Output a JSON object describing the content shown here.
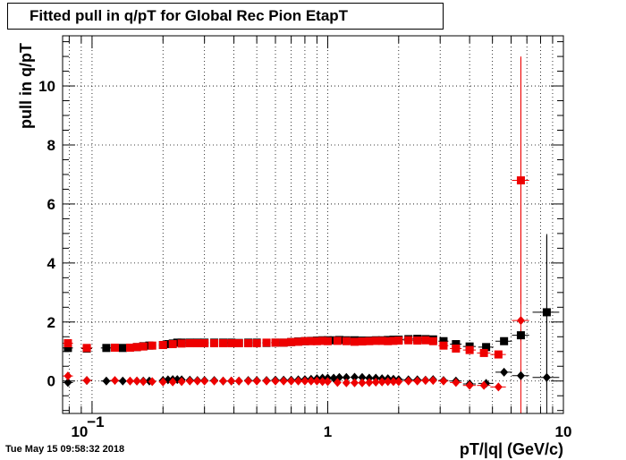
{
  "chart_data": {
    "type": "scatter",
    "title": "Fitted pull in q/pT for Global Rec Pion EtapT",
    "xlabel": "pT/|q| (GeV/c)",
    "ylabel": "pull in q/pT",
    "x_scale": "log",
    "xlim": [
      0.075,
      10
    ],
    "ylim": [
      -1.1,
      11.7
    ],
    "x_tick_labels": [
      "10^-1",
      "1",
      "10"
    ],
    "y_tick_labels": [
      "0",
      "2",
      "4",
      "6",
      "8",
      "10"
    ],
    "grid": true,
    "colors": {
      "series_a": "#000000",
      "series_b": "#ee0000"
    },
    "series": [
      {
        "marker": "square",
        "color": "#000000",
        "x": [
          0.079,
          0.095,
          0.115,
          0.135,
          0.155,
          0.165,
          0.175,
          0.2,
          0.21,
          0.22,
          0.23,
          0.24,
          0.26,
          0.28,
          0.3,
          0.33,
          0.36,
          0.39,
          0.42,
          0.46,
          0.5,
          0.55,
          0.6,
          0.65,
          0.7,
          0.75,
          0.8,
          0.85,
          0.9,
          0.95,
          1.0,
          1.06,
          1.12,
          1.2,
          1.3,
          1.4,
          1.5,
          1.6,
          1.7,
          1.8,
          1.9,
          2.0,
          2.2,
          2.4,
          2.6,
          2.8,
          3.1,
          3.5,
          4.0,
          4.7,
          5.6,
          6.6,
          8.5
        ],
        "y": [
          1.12,
          1.1,
          1.12,
          1.12,
          1.15,
          1.18,
          1.2,
          1.22,
          1.25,
          1.27,
          1.3,
          1.3,
          1.3,
          1.3,
          1.3,
          1.3,
          1.3,
          1.3,
          1.29,
          1.3,
          1.3,
          1.29,
          1.3,
          1.3,
          1.32,
          1.34,
          1.35,
          1.36,
          1.37,
          1.38,
          1.38,
          1.38,
          1.39,
          1.38,
          1.38,
          1.37,
          1.37,
          1.38,
          1.38,
          1.39,
          1.4,
          1.4,
          1.42,
          1.43,
          1.42,
          1.41,
          1.35,
          1.25,
          1.17,
          1.15,
          1.35,
          1.55,
          2.33
        ],
        "yerr": [
          0.01,
          0.01,
          0.01,
          0.01,
          0.01,
          0.01,
          0.01,
          0.01,
          0.01,
          0.01,
          0.01,
          0.01,
          0.01,
          0.01,
          0.01,
          0.01,
          0.01,
          0.01,
          0.01,
          0.01,
          0.01,
          0.01,
          0.01,
          0.01,
          0.01,
          0.01,
          0.01,
          0.01,
          0.01,
          0.01,
          0.01,
          0.01,
          0.01,
          0.01,
          0.01,
          0.01,
          0.01,
          0.01,
          0.01,
          0.01,
          0.01,
          0.01,
          0.01,
          0.01,
          0.01,
          0.01,
          0.02,
          0.02,
          0.04,
          0.05,
          0.1,
          0.2,
          2.65
        ],
        "xerr": [
          0.004,
          0.005,
          0.006,
          0.006,
          0.006,
          0.006,
          0.006,
          0.008,
          0.008,
          0.008,
          0.008,
          0.008,
          0.01,
          0.01,
          0.012,
          0.013,
          0.014,
          0.015,
          0.016,
          0.018,
          0.02,
          0.022,
          0.024,
          0.025,
          0.025,
          0.025,
          0.025,
          0.025,
          0.025,
          0.025,
          0.03,
          0.03,
          0.03,
          0.04,
          0.05,
          0.05,
          0.05,
          0.05,
          0.05,
          0.05,
          0.05,
          0.1,
          0.1,
          0.1,
          0.1,
          0.1,
          0.15,
          0.2,
          0.25,
          0.35,
          0.45,
          0.55,
          1.1
        ]
      },
      {
        "marker": "diamond",
        "color": "#000000",
        "x": [
          0.079,
          0.095,
          0.115,
          0.135,
          0.155,
          0.165,
          0.175,
          0.2,
          0.21,
          0.22,
          0.23,
          0.24,
          0.26,
          0.28,
          0.3,
          0.33,
          0.36,
          0.39,
          0.42,
          0.46,
          0.5,
          0.55,
          0.6,
          0.65,
          0.7,
          0.75,
          0.8,
          0.85,
          0.9,
          0.95,
          1.0,
          1.06,
          1.12,
          1.2,
          1.3,
          1.4,
          1.5,
          1.6,
          1.7,
          1.8,
          1.9,
          2.0,
          2.2,
          2.4,
          2.6,
          2.8,
          3.1,
          3.5,
          4.0,
          4.7,
          5.6,
          6.6,
          8.5
        ],
        "y": [
          -0.05,
          0.02,
          0.0,
          0.0,
          0.0,
          0.0,
          0.0,
          0.02,
          0.04,
          0.05,
          0.05,
          0.04,
          0.03,
          0.02,
          0.02,
          0.02,
          0.0,
          0.0,
          0.0,
          0.02,
          0.02,
          0.02,
          0.03,
          0.03,
          0.03,
          0.04,
          0.05,
          0.06,
          0.08,
          0.1,
          0.1,
          0.1,
          0.12,
          0.12,
          0.13,
          0.12,
          0.1,
          0.1,
          0.08,
          0.08,
          0.06,
          0.05,
          0.04,
          0.04,
          0.03,
          0.05,
          0.02,
          0.0,
          -0.1,
          -0.08,
          0.3,
          0.18,
          0.12
        ],
        "yerr": [
          0.01,
          0.01,
          0.01,
          0.01,
          0.01,
          0.01,
          0.01,
          0.01,
          0.01,
          0.01,
          0.01,
          0.01,
          0.01,
          0.01,
          0.01,
          0.01,
          0.01,
          0.01,
          0.01,
          0.01,
          0.01,
          0.01,
          0.01,
          0.01,
          0.01,
          0.01,
          0.01,
          0.01,
          0.01,
          0.01,
          0.01,
          0.01,
          0.01,
          0.01,
          0.01,
          0.01,
          0.01,
          0.01,
          0.01,
          0.01,
          0.01,
          0.01,
          0.01,
          0.01,
          0.01,
          0.01,
          0.02,
          0.02,
          0.04,
          0.05,
          0.1,
          0.2,
          4.8
        ],
        "xerr": [
          0.004,
          0.005,
          0.006,
          0.006,
          0.006,
          0.006,
          0.006,
          0.008,
          0.008,
          0.008,
          0.008,
          0.008,
          0.01,
          0.01,
          0.012,
          0.013,
          0.014,
          0.015,
          0.016,
          0.018,
          0.02,
          0.022,
          0.024,
          0.025,
          0.025,
          0.025,
          0.025,
          0.025,
          0.025,
          0.025,
          0.03,
          0.03,
          0.03,
          0.04,
          0.05,
          0.05,
          0.05,
          0.05,
          0.05,
          0.05,
          0.05,
          0.1,
          0.1,
          0.1,
          0.1,
          0.1,
          0.15,
          0.2,
          0.25,
          0.35,
          0.45,
          0.55,
          1.1
        ]
      },
      {
        "marker": "square",
        "color": "#ee0000",
        "x": [
          0.079,
          0.095,
          0.125,
          0.145,
          0.155,
          0.165,
          0.18,
          0.2,
          0.22,
          0.24,
          0.26,
          0.28,
          0.3,
          0.33,
          0.36,
          0.39,
          0.42,
          0.46,
          0.5,
          0.55,
          0.6,
          0.65,
          0.7,
          0.75,
          0.8,
          0.85,
          0.9,
          0.95,
          1.0,
          1.1,
          1.2,
          1.3,
          1.4,
          1.5,
          1.6,
          1.7,
          1.8,
          1.9,
          2.0,
          2.2,
          2.4,
          2.6,
          2.8,
          3.1,
          3.5,
          4.0,
          4.6,
          5.3,
          6.6
        ],
        "y": [
          1.28,
          1.12,
          1.13,
          1.13,
          1.15,
          1.17,
          1.2,
          1.22,
          1.25,
          1.27,
          1.28,
          1.28,
          1.28,
          1.28,
          1.28,
          1.28,
          1.28,
          1.28,
          1.28,
          1.3,
          1.3,
          1.3,
          1.32,
          1.33,
          1.35,
          1.35,
          1.35,
          1.36,
          1.35,
          1.36,
          1.35,
          1.33,
          1.34,
          1.35,
          1.36,
          1.36,
          1.35,
          1.36,
          1.37,
          1.38,
          1.37,
          1.38,
          1.35,
          1.2,
          1.1,
          1.05,
          0.95,
          0.9,
          6.8
        ],
        "yerr": [
          0.01,
          0.01,
          0.01,
          0.01,
          0.01,
          0.01,
          0.01,
          0.01,
          0.01,
          0.01,
          0.01,
          0.01,
          0.01,
          0.01,
          0.01,
          0.01,
          0.01,
          0.01,
          0.01,
          0.01,
          0.01,
          0.01,
          0.01,
          0.01,
          0.01,
          0.01,
          0.01,
          0.01,
          0.01,
          0.01,
          0.01,
          0.01,
          0.01,
          0.01,
          0.01,
          0.01,
          0.01,
          0.01,
          0.01,
          0.01,
          0.01,
          0.01,
          0.01,
          0.02,
          0.03,
          0.04,
          0.06,
          0.1,
          4.2
        ],
        "xerr": [
          0.004,
          0.005,
          0.006,
          0.006,
          0.006,
          0.006,
          0.007,
          0.008,
          0.008,
          0.008,
          0.01,
          0.01,
          0.012,
          0.013,
          0.014,
          0.015,
          0.016,
          0.018,
          0.02,
          0.022,
          0.024,
          0.025,
          0.025,
          0.025,
          0.025,
          0.025,
          0.025,
          0.025,
          0.03,
          0.03,
          0.04,
          0.05,
          0.05,
          0.05,
          0.05,
          0.05,
          0.05,
          0.05,
          0.05,
          0.1,
          0.1,
          0.1,
          0.1,
          0.15,
          0.2,
          0.25,
          0.3,
          0.4,
          0.55
        ]
      },
      {
        "marker": "diamond",
        "color": "#ee0000",
        "x": [
          0.079,
          0.095,
          0.125,
          0.145,
          0.155,
          0.165,
          0.18,
          0.2,
          0.22,
          0.24,
          0.26,
          0.28,
          0.3,
          0.33,
          0.36,
          0.39,
          0.42,
          0.46,
          0.5,
          0.55,
          0.6,
          0.65,
          0.7,
          0.75,
          0.8,
          0.85,
          0.9,
          0.95,
          1.0,
          1.1,
          1.2,
          1.3,
          1.4,
          1.5,
          1.6,
          1.7,
          1.8,
          1.9,
          2.0,
          2.2,
          2.4,
          2.6,
          2.8,
          3.1,
          3.5,
          4.0,
          4.6,
          5.3,
          6.6
        ],
        "y": [
          0.17,
          0.02,
          0.02,
          0.0,
          0.0,
          -0.02,
          -0.02,
          -0.03,
          -0.03,
          -0.02,
          0.0,
          0.0,
          0.0,
          0.0,
          0.0,
          0.0,
          0.0,
          0.0,
          0.0,
          0.0,
          0.0,
          0.0,
          0.0,
          0.0,
          0.0,
          0.0,
          0.0,
          -0.02,
          -0.02,
          -0.05,
          -0.06,
          -0.06,
          -0.06,
          -0.05,
          -0.04,
          -0.03,
          -0.02,
          -0.02,
          -0.02,
          0.0,
          0.0,
          0.02,
          0.02,
          0.0,
          -0.05,
          -0.15,
          -0.15,
          -0.2,
          2.05
        ],
        "yerr": [
          0.01,
          0.01,
          0.01,
          0.01,
          0.01,
          0.01,
          0.01,
          0.01,
          0.01,
          0.01,
          0.01,
          0.01,
          0.01,
          0.01,
          0.01,
          0.01,
          0.01,
          0.01,
          0.01,
          0.01,
          0.01,
          0.01,
          0.01,
          0.01,
          0.01,
          0.01,
          0.01,
          0.01,
          0.01,
          0.01,
          0.01,
          0.01,
          0.01,
          0.01,
          0.01,
          0.01,
          0.01,
          0.01,
          0.01,
          0.01,
          0.01,
          0.01,
          0.01,
          0.02,
          0.03,
          0.04,
          0.06,
          0.1,
          8.9
        ],
        "xerr": [
          0.004,
          0.005,
          0.006,
          0.006,
          0.006,
          0.006,
          0.007,
          0.008,
          0.008,
          0.008,
          0.01,
          0.01,
          0.012,
          0.013,
          0.014,
          0.015,
          0.016,
          0.018,
          0.02,
          0.022,
          0.024,
          0.025,
          0.025,
          0.025,
          0.025,
          0.025,
          0.025,
          0.025,
          0.03,
          0.03,
          0.04,
          0.05,
          0.05,
          0.05,
          0.05,
          0.05,
          0.05,
          0.05,
          0.05,
          0.1,
          0.1,
          0.1,
          0.1,
          0.15,
          0.2,
          0.25,
          0.3,
          0.4,
          0.55
        ]
      }
    ]
  },
  "footer": {
    "timestamp": "Tue May 15 09:58:32 2018"
  }
}
